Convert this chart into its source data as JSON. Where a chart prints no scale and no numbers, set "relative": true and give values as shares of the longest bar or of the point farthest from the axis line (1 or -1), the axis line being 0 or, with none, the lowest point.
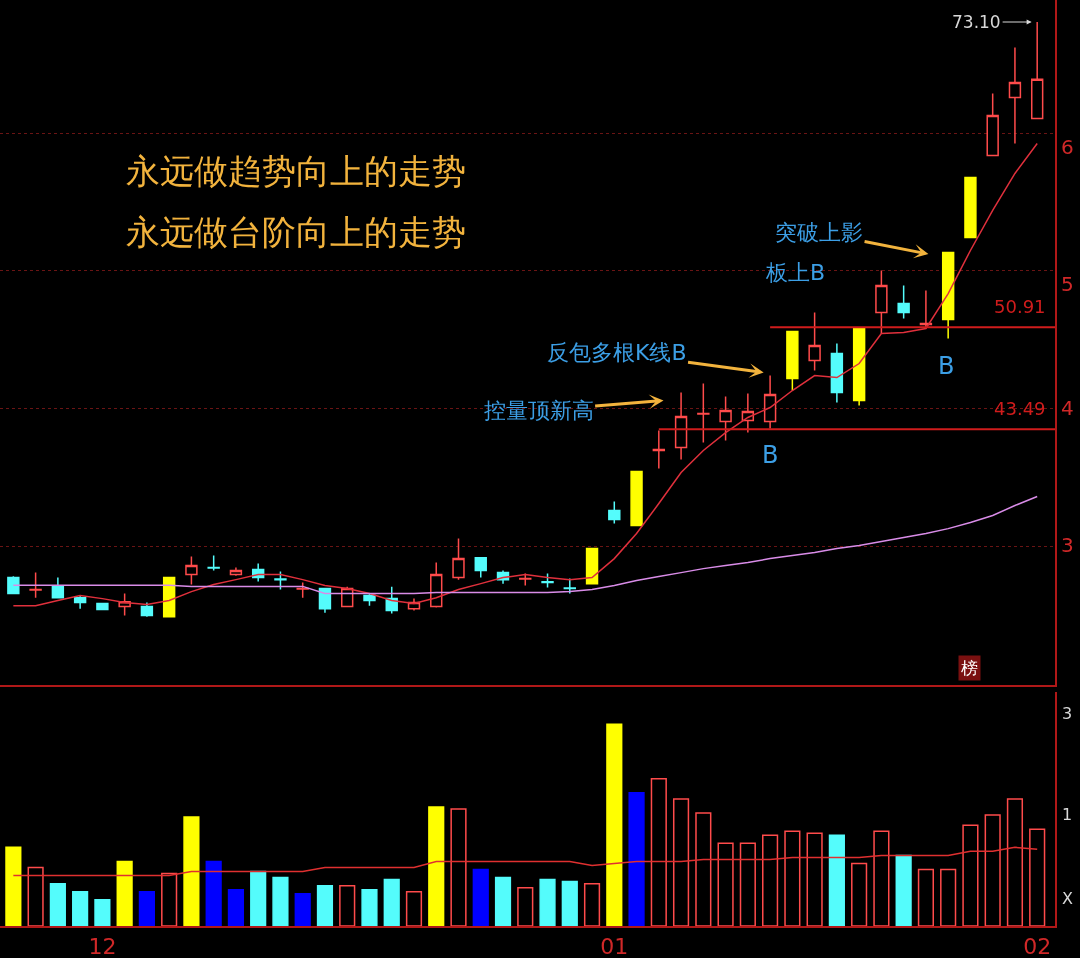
{
  "chart_data": [
    {
      "type": "candlestick",
      "categories": [
        null,
        null,
        null,
        null,
        "12",
        null,
        null,
        null,
        null,
        null,
        null,
        null,
        null,
        null,
        null,
        null,
        null,
        null,
        null,
        null,
        null,
        null,
        null,
        null,
        null,
        null,
        null,
        "01",
        null,
        null,
        null,
        null,
        null,
        null,
        null,
        null,
        null,
        null,
        null,
        null,
        null,
        null,
        null,
        null,
        null,
        null,
        "02"
      ],
      "ohlc": [
        [
          32.71,
          32.8,
          31.5,
          31.55
        ],
        [
          31.8,
          33.07,
          31.25,
          31.84
        ],
        [
          32.05,
          32.71,
          31.18,
          31.25
        ],
        [
          31.25,
          31.4,
          30.45,
          30.89
        ],
        [
          30.82,
          30.82,
          30.38,
          30.38
        ],
        [
          30.6,
          31.55,
          29.95,
          30.96
        ],
        [
          30.6,
          30.89,
          29.87,
          29.95
        ],
        [
          29.87,
          32.71,
          29.87,
          32.71
        ],
        [
          32.93,
          34.24,
          32.2,
          33.58
        ],
        [
          33.44,
          34.31,
          33.22,
          33.4
        ],
        [
          32.93,
          33.44,
          32.85,
          33.22
        ],
        [
          33.29,
          33.73,
          32.42,
          32.71
        ],
        [
          32.6,
          33.15,
          31.84,
          32.56
        ],
        [
          31.88,
          32.35,
          31.25,
          31.91
        ],
        [
          31.91,
          31.91,
          30.16,
          30.45
        ],
        [
          30.6,
          32.05,
          30.6,
          31.91
        ],
        [
          31.4,
          31.55,
          30.67,
          31.04
        ],
        [
          31.18,
          32.05,
          30.09,
          30.31
        ],
        [
          30.45,
          31.18,
          30.31,
          30.89
        ],
        [
          30.6,
          33.8,
          30.53,
          32.93
        ],
        [
          32.71,
          35.55,
          32.56,
          34.09
        ],
        [
          34.16,
          34.16,
          32.71,
          33.22
        ],
        [
          33.07,
          33.22,
          32.27,
          32.56
        ],
        [
          32.6,
          33.0,
          32.13,
          32.64
        ],
        [
          32.4,
          33.0,
          31.98,
          32.35
        ],
        [
          31.95,
          32.64,
          31.55,
          31.91
        ],
        [
          32.27,
          34.82,
          32.27,
          34.82
        ],
        [
          37.58,
          38.24,
          36.64,
          36.93
        ],
        [
          36.49,
          40.42,
          36.49,
          40.42
        ],
        [
          41.95,
          43.4,
          40.64,
          42.02
        ],
        [
          42.16,
          46.16,
          41.29,
          44.42
        ],
        [
          44.6,
          46.82,
          42.53,
          44.64
        ],
        [
          44.05,
          45.87,
          42.67,
          44.85
        ],
        [
          44.13,
          46.09,
          43.25,
          44.78
        ],
        [
          44.05,
          47.4,
          43.55,
          46.02
        ],
        [
          47.18,
          50.6,
          46.31,
          50.6
        ],
        [
          48.49,
          51.98,
          47.76,
          49.58
        ],
        [
          49.0,
          49.73,
          45.44,
          46.16
        ],
        [
          45.58,
          50.82,
          45.22,
          50.82
        ],
        [
          51.98,
          55.04,
          50.45,
          53.95
        ],
        [
          52.64,
          53.95,
          51.55,
          51.98
        ],
        [
          51.1,
          53.58,
          50.82,
          51.18
        ],
        [
          51.47,
          56.35,
          50.09,
          56.35
        ],
        [
          57.44,
          61.8,
          57.44,
          61.8
        ],
        [
          63.4,
          67.91,
          63.4,
          66.31
        ],
        [
          67.62,
          71.25,
          64.27,
          68.71
        ],
        [
          66.09,
          73.1,
          66.09,
          68.93
        ]
      ],
      "colors": [
        "#54fcfc",
        "#ff4b4b",
        "#54fcfc",
        "#54fcfc",
        "#54fcfc",
        "#ff4b4b",
        "#54fcfc",
        "#ffff00",
        "#ff4b4b",
        "#54fcfc",
        "#ff4b4b",
        "#54fcfc",
        "#54fcfc",
        "#ff4b4b",
        "#54fcfc",
        "#ff4b4b",
        "#54fcfc",
        "#54fcfc",
        "#ff4b4b",
        "#ff4b4b",
        "#ff4b4b",
        "#54fcfc",
        "#54fcfc",
        "#ff4b4b",
        "#54fcfc",
        "#54fcfc",
        "#ffff00",
        "#54fcfc",
        "#ffff00",
        "#ff4b4b",
        "#ff4b4b",
        "#ff4b4b",
        "#ff4b4b",
        "#ff4b4b",
        "#ff4b4b",
        "#ffff00",
        "#ff4b4b",
        "#54fcfc",
        "#ffff00",
        "#ff4b4b",
        "#54fcfc",
        "#ff4b4b",
        "#ffff00",
        "#ffff00",
        "#ff4b4b",
        "#ff4b4b",
        "#ff4b4b"
      ],
      "series": [
        {
          "type": "line",
          "color": "#e0303c",
          "values": [
            30.67,
            30.67,
            31.04,
            31.4,
            31.18,
            30.89,
            30.75,
            31.04,
            31.69,
            32.2,
            32.56,
            32.93,
            32.93,
            32.56,
            32.13,
            31.91,
            31.55,
            31.04,
            30.82,
            31.25,
            31.84,
            32.27,
            32.71,
            32.93,
            32.71,
            32.56,
            32.71,
            34.09,
            35.91,
            38.09,
            40.35,
            41.95,
            43.25,
            44.35,
            45.07,
            46.31,
            47.4,
            47.25,
            48.27,
            50.45,
            50.53,
            50.82,
            53.36,
            56.49,
            59.4,
            62.09,
            64.27
          ]
        },
        {
          "type": "line",
          "color": "#d98ce8",
          "values": [
            32.16,
            32.16,
            32.16,
            32.16,
            32.16,
            32.16,
            32.16,
            32.16,
            32.07,
            32.07,
            32.07,
            32.07,
            32.07,
            32.07,
            31.55,
            31.55,
            31.55,
            31.55,
            31.55,
            31.62,
            31.62,
            31.62,
            31.62,
            31.62,
            31.62,
            31.69,
            31.84,
            32.13,
            32.49,
            32.78,
            33.07,
            33.36,
            33.58,
            33.8,
            34.09,
            34.31,
            34.53,
            34.82,
            35.04,
            35.33,
            35.62,
            35.91,
            36.27,
            36.71,
            37.22,
            37.95,
            38.6
          ]
        }
      ],
      "ylim": [
        24.9,
        74.7
      ],
      "tick_labels": "y",
      "yticks": [
        {
          "value": 35,
          "label": null
        },
        {
          "value": 45,
          "label": null
        },
        {
          "value": 55,
          "label": null
        },
        {
          "value": 65,
          "label": null
        }
      ],
      "grid": "y",
      "ref_lines": [
        {
          "axis": "y",
          "value": 50.91,
          "label": "50.91",
          "color": "#d01c1c"
        },
        {
          "axis": "y",
          "value": 43.49,
          "label": "43.49",
          "color": "#d01c1c"
        }
      ],
      "annotations": [
        "永远做趋势向上的走势",
        "永远做台阶向上的走势",
        "控量顶新高",
        "反包多根K线B",
        "B",
        "突破上影",
        "板上B",
        "B",
        "榜",
        "73.10",
        "3",
        "4",
        "5",
        "6"
      ]
    },
    {
      "type": "bar",
      "categories": [
        null,
        null,
        null,
        null,
        "12",
        null,
        null,
        null,
        null,
        null,
        null,
        null,
        null,
        null,
        null,
        null,
        null,
        null,
        null,
        null,
        null,
        null,
        null,
        null,
        null,
        null,
        null,
        "01",
        null,
        null,
        null,
        null,
        null,
        null,
        null,
        null,
        null,
        null,
        null,
        null,
        null,
        null,
        null,
        null,
        null,
        null,
        "02"
      ],
      "relative": true,
      "tick_labels": "x",
      "series": [
        {
          "type": "bar",
          "colors": [
            "#ffff00",
            "#ff4b4b",
            "#54fcfc",
            "#54fcfc",
            "#54fcfc",
            "#ffff00",
            "#0000ff",
            "#ff4b4b",
            "#ffff00",
            "#0000ff",
            "#0000ff",
            "#54fcfc",
            "#54fcfc",
            "#0000ff",
            "#54fcfc",
            "#ff4b4b",
            "#54fcfc",
            "#54fcfc",
            "#ff4b4b",
            "#ffff00",
            "#ff4b4b",
            "#0000ff",
            "#54fcfc",
            "#ff4b4b",
            "#54fcfc",
            "#54fcfc",
            "#ff4b4b",
            "#ffff00",
            "#0000ff",
            "#ff4b4b",
            "#ff4b4b",
            "#ff4b4b",
            "#ff4b4b",
            "#ff4b4b",
            "#ff4b4b",
            "#ff4b4b",
            "#ff4b4b",
            "#54fcfc",
            "#ff4b4b",
            "#ff4b4b",
            "#54fcfc",
            "#ff4b4b",
            "#ff4b4b",
            "#ff4b4b",
            "#ff4b4b",
            "#ff4b4b",
            "#ff4b4b"
          ],
          "values": [
            0.39,
            0.29,
            0.21,
            0.17,
            0.13,
            0.32,
            0.17,
            0.26,
            0.54,
            0.32,
            0.18,
            0.27,
            0.24,
            0.16,
            0.2,
            0.2,
            0.18,
            0.23,
            0.17,
            0.59,
            0.58,
            0.28,
            0.24,
            0.19,
            0.23,
            0.22,
            0.21,
            1,
            0.66,
            0.73,
            0.63,
            0.56,
            0.41,
            0.41,
            0.45,
            0.47,
            0.46,
            0.45,
            0.31,
            0.47,
            0.35,
            0.28,
            0.28,
            0.5,
            0.55,
            0.63,
            0.48
          ]
        },
        {
          "type": "line",
          "color": "#e03030",
          "values": [
            0.25,
            0.25,
            0.25,
            0.25,
            0.25,
            0.25,
            0.25,
            0.25,
            0.27,
            0.27,
            0.27,
            0.27,
            0.27,
            0.27,
            0.29,
            0.29,
            0.29,
            0.29,
            0.29,
            0.32,
            0.32,
            0.32,
            0.32,
            0.32,
            0.32,
            0.32,
            0.3,
            0.31,
            0.32,
            0.32,
            0.32,
            0.33,
            0.33,
            0.33,
            0.33,
            0.34,
            0.34,
            0.34,
            0.34,
            0.35,
            0.35,
            0.35,
            0.35,
            0.37,
            0.37,
            0.39,
            0.38
          ]
        }
      ],
      "annotations": [
        "3",
        "1",
        "X"
      ]
    }
  ]
}
